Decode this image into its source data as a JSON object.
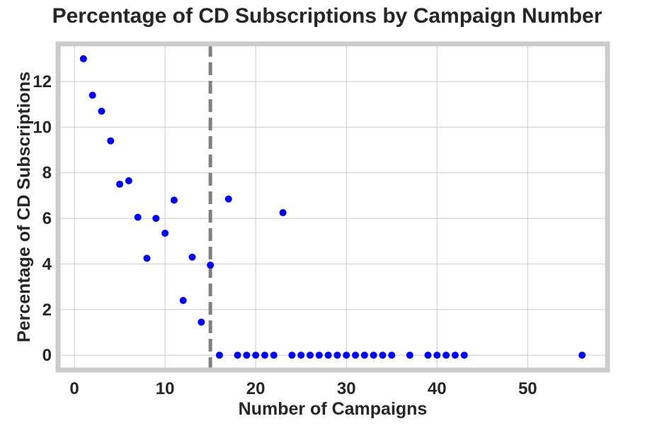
{
  "chart_data": {
    "type": "scatter",
    "title": "Percentage of CD Subscriptions by Campaign Number",
    "xlabel": "Number of Campaigns",
    "ylabel": "Percentage of CD Subscriptions",
    "xlim": [
      -1.8,
      58.8
    ],
    "ylim": [
      -0.65,
      13.65
    ],
    "xticks": [
      0,
      10,
      20,
      30,
      40,
      50
    ],
    "yticks": [
      0,
      2,
      4,
      6,
      8,
      10,
      12
    ],
    "grid": true,
    "point_color": "#0000ff",
    "reference_line": {
      "x": 15,
      "style": "dashed",
      "color": "#808080"
    },
    "series": [
      {
        "x": [
          1,
          2,
          3,
          4,
          5,
          6,
          7,
          8,
          9,
          10,
          11,
          12,
          13,
          14,
          15,
          16,
          17,
          18,
          19,
          20,
          21,
          22,
          23,
          24,
          25,
          26,
          27,
          28,
          29,
          30,
          31,
          32,
          33,
          34,
          35,
          37,
          39,
          40,
          41,
          42,
          43,
          56
        ],
        "y": [
          13.0,
          11.4,
          10.7,
          9.4,
          7.5,
          7.65,
          6.05,
          4.25,
          6.0,
          5.35,
          6.8,
          2.4,
          4.3,
          1.45,
          3.95,
          0,
          6.85,
          0,
          0,
          0,
          0,
          0,
          6.25,
          0,
          0,
          0,
          0,
          0,
          0,
          0,
          0,
          0,
          0,
          0,
          0,
          0,
          0,
          0,
          0,
          0,
          0,
          0
        ]
      }
    ]
  }
}
